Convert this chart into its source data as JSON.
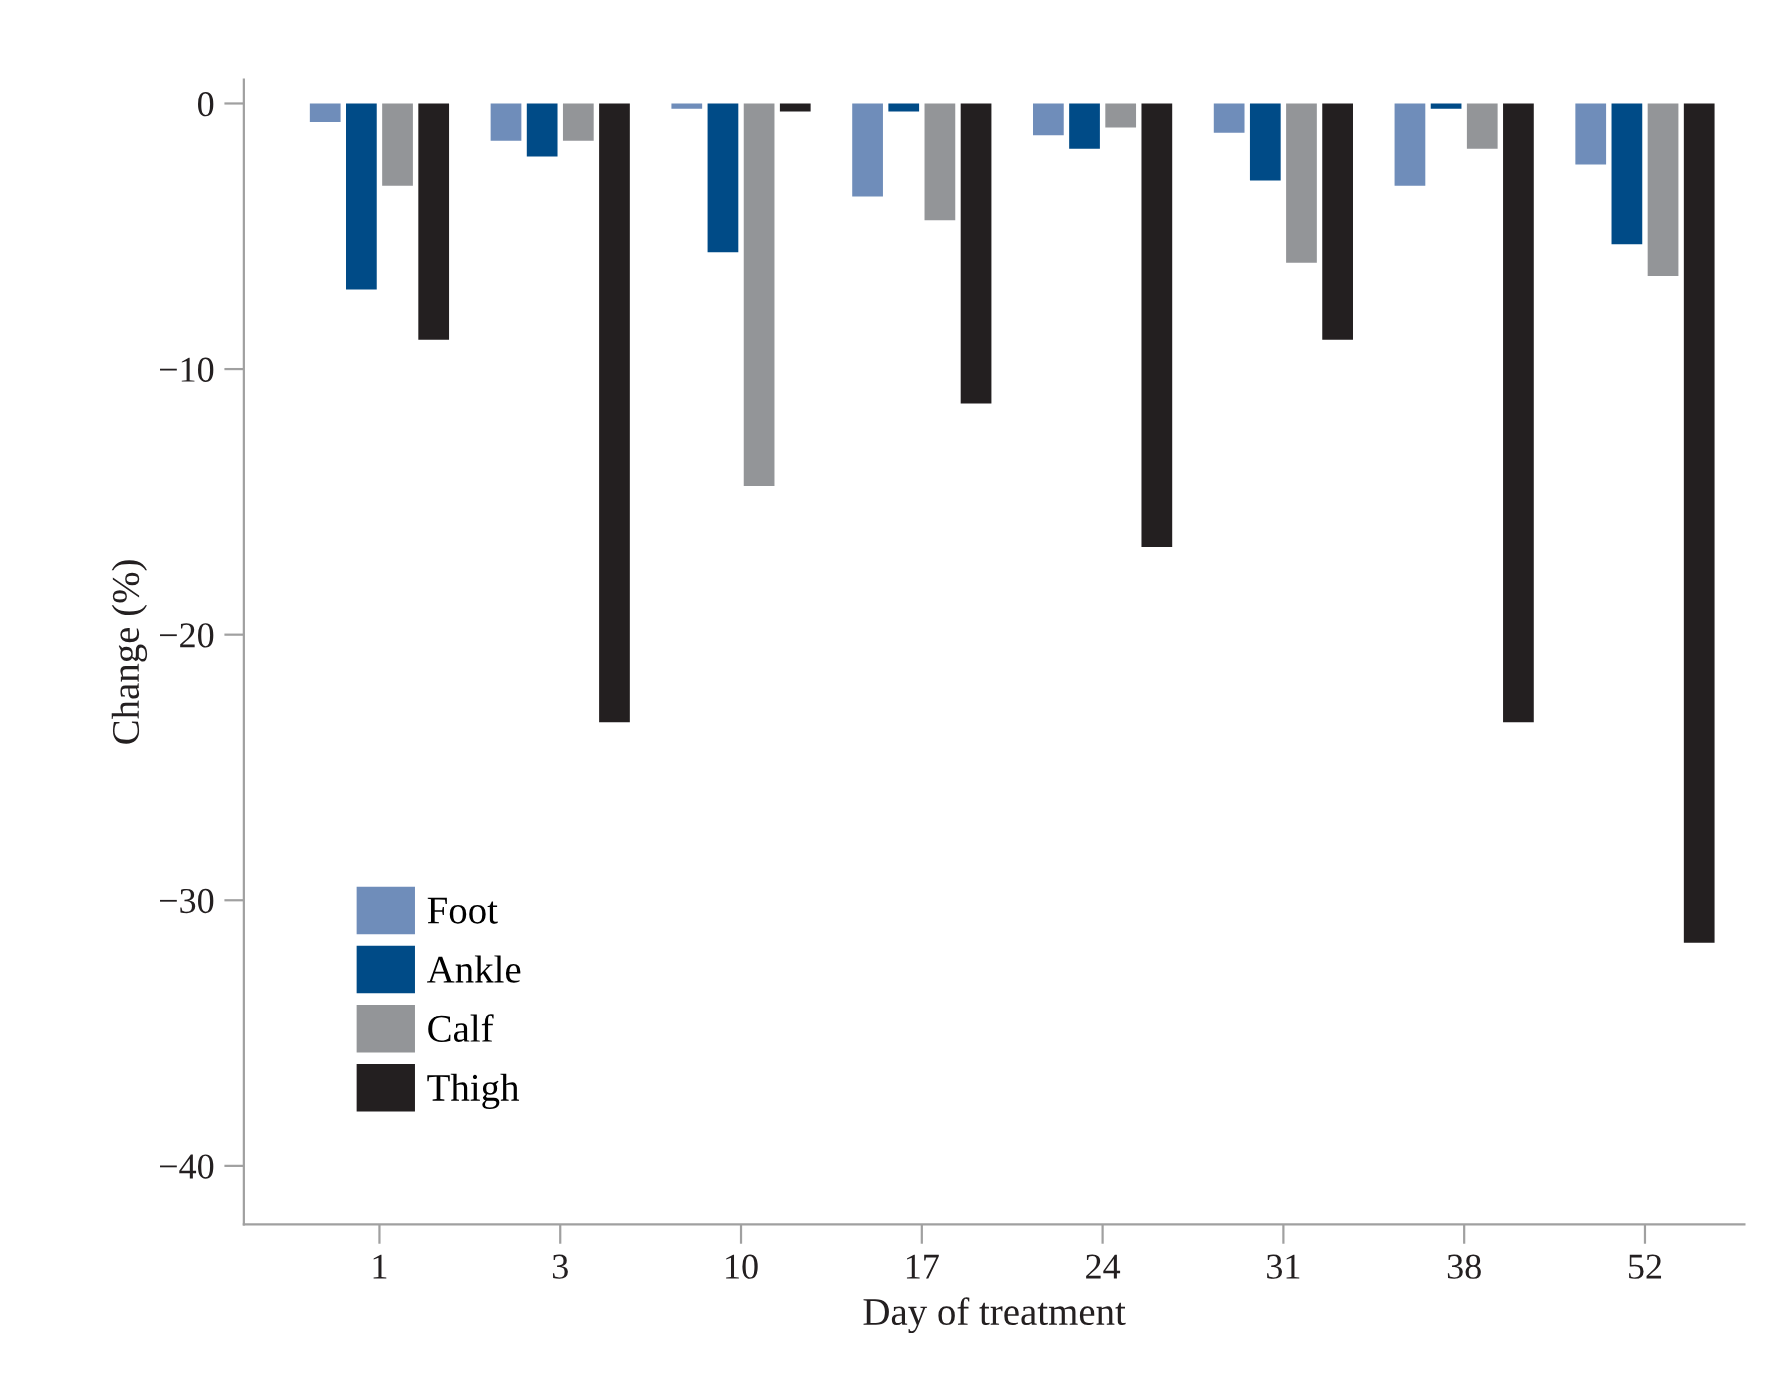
{
  "chart_data": {
    "type": "bar",
    "xlabel": "Day of treatment",
    "ylabel": "Change (%)",
    "categories": [
      "1",
      "3",
      "10",
      "17",
      "24",
      "31",
      "38",
      "52"
    ],
    "series": [
      {
        "name": "Foot",
        "color": "#6f8dba",
        "values": [
          -0.7,
          -1.4,
          -0.2,
          -3.5,
          -1.2,
          -1.1,
          -3.1,
          -2.3
        ]
      },
      {
        "name": "Ankle",
        "color": "#004b87",
        "values": [
          -7.0,
          -2.0,
          -5.6,
          -0.3,
          -1.7,
          -2.9,
          -0.2,
          -5.3
        ]
      },
      {
        "name": "Calf",
        "color": "#939598",
        "values": [
          -3.1,
          -1.4,
          -14.4,
          -4.4,
          -0.9,
          -6.0,
          -1.7,
          -6.5
        ]
      },
      {
        "name": "Thigh",
        "color": "#231f20",
        "values": [
          -8.9,
          -23.3,
          -0.3,
          -11.3,
          -16.7,
          -8.9,
          -23.3,
          -31.6
        ]
      }
    ],
    "ylim": [
      -42.2,
      0.9
    ],
    "yticks": [
      {
        "value": 0,
        "label": "0"
      },
      {
        "value": -10,
        "label": "−10"
      },
      {
        "value": -20,
        "label": "−20"
      },
      {
        "value": -30,
        "label": "−30"
      },
      {
        "value": -40,
        "label": "−40"
      }
    ],
    "grid": false,
    "legend": "bottom left"
  }
}
